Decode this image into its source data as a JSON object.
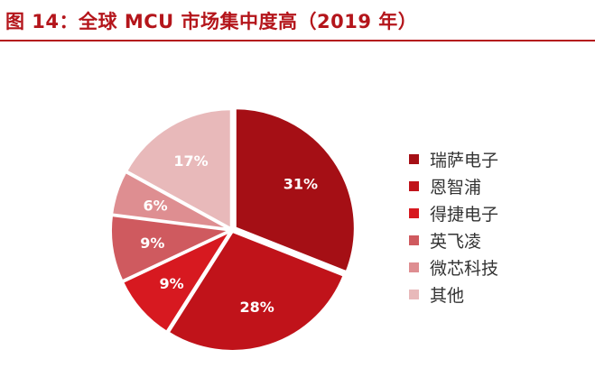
{
  "title": "图 14：全球 MCU 市场集中度高（2019 年）",
  "chart_data": {
    "type": "pie",
    "title": "图 14：全球 MCU 市场集中度高（2019 年）",
    "slices": [
      {
        "label": "瑞萨电子",
        "value": 31,
        "display": "31%",
        "color": "#a50f15"
      },
      {
        "label": "恩智浦",
        "value": 28,
        "display": "28%",
        "color": "#c0131a"
      },
      {
        "label": "得捷电子",
        "value": 9,
        "display": "9%",
        "color": "#d71920"
      },
      {
        "label": "英飞凌",
        "value": 9,
        "display": "9%",
        "color": "#cf5a5f"
      },
      {
        "label": "微芯科技",
        "value": 6,
        "display": "6%",
        "color": "#de8e91"
      },
      {
        "label": "其他",
        "value": 17,
        "display": "17%",
        "color": "#e8b9ba"
      }
    ],
    "legend_position": "right"
  }
}
